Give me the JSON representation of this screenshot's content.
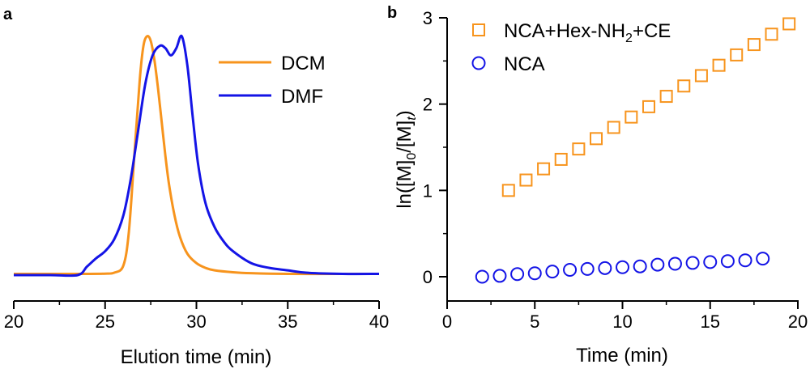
{
  "chart_data": [
    {
      "panel": "a",
      "type": "line",
      "title": "",
      "xlabel": "Elution time (min)",
      "ylabel": "",
      "xlim": [
        20,
        40
      ],
      "ylim": [
        0,
        1.05
      ],
      "xticks": [
        20,
        25,
        30,
        35,
        40
      ],
      "xtick_labels": [
        "20",
        "25",
        "30",
        "35",
        "40"
      ],
      "legend_position": "top-right",
      "series": [
        {
          "name": "DCM",
          "color": "#F7941D",
          "x": [
            20,
            22,
            24,
            25,
            25.5,
            26,
            26.3,
            26.6,
            26.9,
            27.1,
            27.3,
            27.5,
            27.7,
            27.9,
            28.1,
            28.3,
            28.5,
            28.8,
            29.1,
            29.5,
            30,
            30.5,
            31,
            32,
            33,
            35,
            38,
            40
          ],
          "y": [
            0.005,
            0.005,
            0.005,
            0.006,
            0.01,
            0.04,
            0.18,
            0.5,
            0.82,
            0.96,
            1.0,
            0.98,
            0.9,
            0.78,
            0.64,
            0.5,
            0.38,
            0.25,
            0.16,
            0.09,
            0.05,
            0.03,
            0.02,
            0.012,
            0.008,
            0.005,
            0.005,
            0.005
          ]
        },
        {
          "name": "DMF",
          "color": "#1414E6",
          "x": [
            20,
            22,
            23.5,
            24,
            24.5,
            25,
            25.5,
            26,
            26.4,
            26.8,
            27.2,
            27.6,
            28.0,
            28.3,
            28.6,
            28.9,
            29.2,
            29.5,
            29.8,
            30.1,
            30.5,
            31.0,
            31.5,
            32,
            33,
            34,
            35,
            36,
            38,
            40
          ],
          "y": [
            0.0,
            0.0,
            0.0,
            0.035,
            0.07,
            0.1,
            0.15,
            0.25,
            0.4,
            0.6,
            0.8,
            0.92,
            0.96,
            0.95,
            0.92,
            0.95,
            1.0,
            0.88,
            0.66,
            0.46,
            0.3,
            0.2,
            0.14,
            0.1,
            0.05,
            0.03,
            0.02,
            0.01,
            0.005,
            0.005
          ]
        }
      ]
    },
    {
      "panel": "b",
      "type": "scatter",
      "title": "",
      "xlabel": "Time (min)",
      "ylabel": "ln([M]0/[M]t)",
      "xlim": [
        0,
        20
      ],
      "ylim": [
        -0.3,
        3.05
      ],
      "xticks": [
        0,
        5,
        10,
        15,
        20
      ],
      "xtick_labels": [
        "0",
        "5",
        "10",
        "15",
        "20"
      ],
      "yticks": [
        0,
        1,
        2,
        3
      ],
      "ytick_labels": [
        "0",
        "1",
        "2",
        "3"
      ],
      "legend_position": "top-left",
      "series": [
        {
          "name": "NCA+Hex-NH2+CE",
          "color": "#F7941D",
          "marker": "square",
          "x": [
            3.5,
            4.5,
            5.5,
            6.5,
            7.5,
            8.5,
            9.5,
            10.5,
            11.5,
            12.5,
            13.5,
            14.5,
            15.5,
            16.5,
            17.5,
            18.5,
            19.5
          ],
          "y": [
            1.0,
            1.12,
            1.25,
            1.36,
            1.48,
            1.6,
            1.73,
            1.85,
            1.97,
            2.09,
            2.21,
            2.33,
            2.45,
            2.57,
            2.69,
            2.81,
            2.93
          ]
        },
        {
          "name": "NCA",
          "color": "#1414E6",
          "marker": "circle",
          "x": [
            2,
            3,
            4,
            5,
            6,
            7,
            8,
            9,
            10,
            11,
            12,
            13,
            14,
            15,
            16,
            17,
            18
          ],
          "y": [
            0.0,
            0.01,
            0.03,
            0.04,
            0.06,
            0.08,
            0.09,
            0.1,
            0.11,
            0.12,
            0.14,
            0.15,
            0.16,
            0.17,
            0.18,
            0.19,
            0.21
          ]
        }
      ]
    }
  ],
  "labels": {
    "panel_a": "a",
    "panel_b": "b",
    "legend_a": [
      "DCM",
      "DMF"
    ],
    "legend_b_main": "NCA+Hex-NH",
    "legend_b_sub": "2",
    "legend_b_tail": "+CE",
    "legend_b_2": "NCA",
    "ylabel_b": {
      "pre": "ln([M]",
      "sub0": "0",
      "mid": "/[M]",
      "subt": "t",
      "post": ")"
    }
  }
}
